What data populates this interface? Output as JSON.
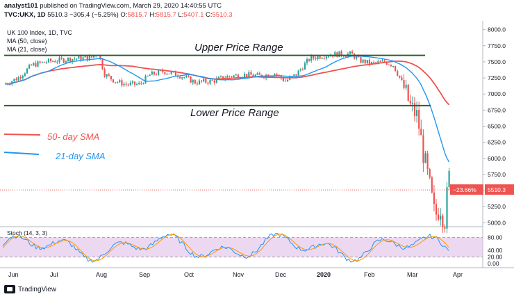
{
  "header": {
    "line1_author": "analyst101",
    "line1_rest": " published on TradingView.com, March 29, 2020 14:40:55 UTC",
    "symbol": "TVC:UKX, 1D",
    "last": "5510.3",
    "change": "−305.4 (−5.25%)",
    "o_label": "O:",
    "o": "5815.7",
    "h_label": "H:",
    "h": "5815.7",
    "l_label": "L:",
    "l": "5407.1",
    "c_label": "C:",
    "c": "5510.3"
  },
  "legend": {
    "title": "UK 100 Index, 1D, TVC",
    "ma50": "MA (50, close)",
    "ma21": "MA (21, close)"
  },
  "annotations": {
    "upper": "Upper Price Range",
    "lower": "Lower Price Range",
    "sma50": "50- day SMA",
    "sma21": "21-day SMA"
  },
  "stoch": {
    "label": "Stoch (14, 3, 3)",
    "ticks": [
      "80.00",
      "40.00",
      "20.00",
      "0.00"
    ]
  },
  "price_axis": [
    "8000.0",
    "7750.0",
    "7500.0",
    "7250.0",
    "7000.0",
    "6750.0",
    "6500.0",
    "6250.0",
    "6000.0",
    "5750.0",
    "5500.0",
    "5250.0",
    "5000.0"
  ],
  "time_axis": [
    "Jun",
    "Jul",
    "Aug",
    "Sep",
    "Oct",
    "Nov",
    "Dec",
    "2020",
    "Feb",
    "Mar",
    "Apr"
  ],
  "badges": {
    "pct": "−23.66%",
    "price": "5510.3"
  },
  "footer": {
    "brand": "TradingView"
  },
  "colors": {
    "up": "#26a69a",
    "down": "#ef5350",
    "ma50": "#ef5350",
    "ma21": "#2196f3",
    "range": "#2e5d2e",
    "stochBg": "#e1bee7"
  },
  "chart_data": {
    "type": "candlestick",
    "ylim": [
      4950,
      8050
    ],
    "series_close": [
      {
        "x": "Jun",
        "v": 7180
      },
      {
        "x": "Jul",
        "v": 7540
      },
      {
        "x": "late Jul",
        "v": 7600
      },
      {
        "x": "Aug",
        "v": 7300
      },
      {
        "x": "mid Aug",
        "v": 7150
      },
      {
        "x": "Sep",
        "v": 7300
      },
      {
        "x": "Oct",
        "v": 7200
      },
      {
        "x": "Nov",
        "v": 7300
      },
      {
        "x": "Dec",
        "v": 7250
      },
      {
        "x": "2020",
        "v": 7600
      },
      {
        "x": "mid Jan",
        "v": 7650
      },
      {
        "x": "Feb",
        "v": 7450
      },
      {
        "x": "late Feb",
        "v": 6800
      },
      {
        "x": "Mar",
        "v": 6400
      },
      {
        "x": "mid Mar",
        "v": 5300
      },
      {
        "x": "low",
        "v": 5000
      },
      {
        "x": "late Mar",
        "v": 5815.7
      },
      {
        "x": "last",
        "v": 5510.3
      }
    ],
    "ma50_end": 6720,
    "ma21_end": 5800,
    "upper_range": 7600,
    "lower_range": 6820
  }
}
